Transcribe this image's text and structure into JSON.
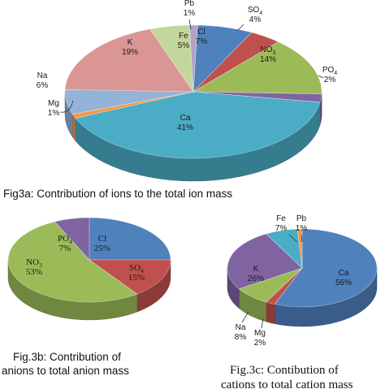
{
  "chart_data": [
    {
      "type": "pie",
      "slices": [
        {
          "label": "Cl",
          "value": 7,
          "text": "7%",
          "color": "#4f81bd"
        },
        {
          "label": "SO4",
          "value": 4,
          "text": "4%",
          "color": "#c0504d"
        },
        {
          "label": "NO3",
          "value": 14,
          "text": "14%",
          "color": "#9bbb59"
        },
        {
          "label": "PO4",
          "value": 2,
          "text": "2%",
          "color": "#8064a2"
        },
        {
          "label": "Ca",
          "value": 41,
          "text": "41%",
          "color": "#4bacc6"
        },
        {
          "label": "Mg",
          "value": 1,
          "text": "1%",
          "color": "#f79646"
        },
        {
          "label": "Na",
          "value": 6,
          "text": "6%",
          "color": "#95b3d7"
        },
        {
          "label": "K",
          "value": 19,
          "text": "19%",
          "color": "#d99694"
        },
        {
          "label": "Fe",
          "value": 5,
          "text": "5%",
          "color": "#c3d69b"
        },
        {
          "label": "Pb",
          "value": 1,
          "text": "1%",
          "color": "#b3a2c7"
        }
      ],
      "caption": "Fig3a: Contribution of ions to the total ion mass"
    },
    {
      "type": "pie",
      "slices": [
        {
          "label": "Cl",
          "value": 25,
          "text": "25%",
          "color": "#4f81bd"
        },
        {
          "label": "SO4",
          "value": 15,
          "text": "15%",
          "color": "#c0504d"
        },
        {
          "label": "NO3",
          "value": 53,
          "text": "53%",
          "color": "#9bbb59"
        },
        {
          "label": "PO4",
          "value": 7,
          "text": "7%",
          "color": "#8064a2"
        }
      ],
      "caption_lines": [
        "Fig.3b: Contribution of",
        "anions to total anion mass"
      ]
    },
    {
      "type": "pie",
      "slices": [
        {
          "label": "Ca",
          "value": 56,
          "text": "56%",
          "color": "#4f81bd"
        },
        {
          "label": "Mg",
          "value": 2,
          "text": "2%",
          "color": "#c0504d"
        },
        {
          "label": "Na",
          "value": 8,
          "text": "8%",
          "color": "#9bbb59"
        },
        {
          "label": "K",
          "value": 26,
          "text": "26%",
          "color": "#8064a2"
        },
        {
          "label": "Fe",
          "value": 7,
          "text": "7%",
          "color": "#4bacc6"
        },
        {
          "label": "Pb",
          "value": 1,
          "text": "1%",
          "color": "#f79646"
        }
      ],
      "caption_lines": [
        "Fig.3c: Contibution of",
        "cations to total cation mass"
      ]
    }
  ]
}
